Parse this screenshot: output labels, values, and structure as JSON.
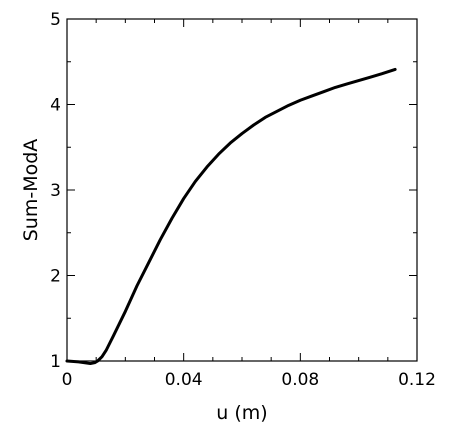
{
  "chart_data": {
    "type": "line",
    "title": "",
    "xlabel": "u (m)",
    "ylabel": "Sum-ModA",
    "xlim": [
      0,
      0.12
    ],
    "ylim": [
      1,
      5
    ],
    "xticks": [
      0,
      0.04,
      0.08,
      0.12
    ],
    "xtick_labels": [
      "0",
      "0.04",
      "0.08",
      "0.12"
    ],
    "yticks": [
      1,
      2,
      3,
      4,
      5
    ],
    "ytick_labels": [
      "1",
      "2",
      "3",
      "4",
      "5"
    ],
    "grid": false,
    "legend": "none",
    "line_color": "#000000",
    "series": [
      {
        "x": [
          0,
          0.004,
          0.008,
          0.0095,
          0.0105,
          0.012,
          0.0135,
          0.016,
          0.02,
          0.024,
          0.028,
          0.032,
          0.036,
          0.04,
          0.044,
          0.048,
          0.052,
          0.056,
          0.06,
          0.064,
          0.068,
          0.072,
          0.076,
          0.08,
          0.084,
          0.088,
          0.092,
          0.096,
          0.1,
          0.104,
          0.108,
          0.1125
        ],
        "y": [
          1.0,
          0.99,
          0.97,
          0.98,
          1.0,
          1.05,
          1.13,
          1.3,
          1.58,
          1.88,
          2.15,
          2.42,
          2.67,
          2.9,
          3.1,
          3.27,
          3.42,
          3.55,
          3.66,
          3.76,
          3.85,
          3.92,
          3.99,
          4.05,
          4.1,
          4.15,
          4.2,
          4.24,
          4.28,
          4.32,
          4.36,
          4.41
        ]
      }
    ]
  }
}
